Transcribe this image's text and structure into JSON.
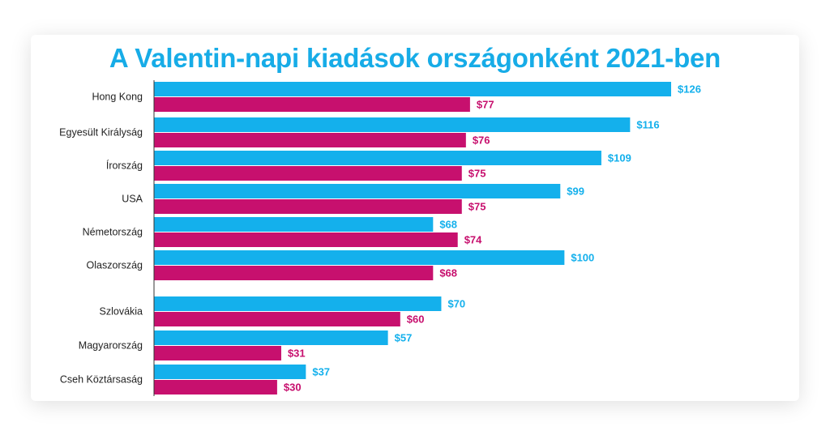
{
  "colors": {
    "title": "#17ACE7",
    "series_a": "#14B0EC",
    "series_b": "#C7106E",
    "axis": "#333333"
  },
  "chart_data": {
    "type": "bar",
    "orientation": "horizontal",
    "title": "A Valentin-napi kiadások országonként 2021-ben",
    "xlabel": "",
    "ylabel": "",
    "grid": false,
    "legend": "none",
    "xlim": [
      0,
      126
    ],
    "categories": [
      "Hong Kong",
      "Egyesült Királyság",
      "Írország",
      "USA",
      "Németország",
      "Olaszország",
      "Szlovákia",
      "Magyarország",
      "Cseh Köztársaság"
    ],
    "series": [
      {
        "values": [
          126,
          116,
          109,
          99,
          68,
          100,
          70,
          57,
          37
        ],
        "labels": [
          "$126",
          "$116",
          "$109",
          "$99",
          "$68",
          "$100",
          "$70",
          "$57",
          "$37"
        ]
      },
      {
        "values": [
          77,
          76,
          75,
          75,
          74,
          68,
          60,
          31,
          30
        ],
        "labels": [
          "$77",
          "$76",
          "$75",
          "$75",
          "$74",
          "$68",
          "$60",
          "$31",
          "$30"
        ]
      }
    ]
  }
}
